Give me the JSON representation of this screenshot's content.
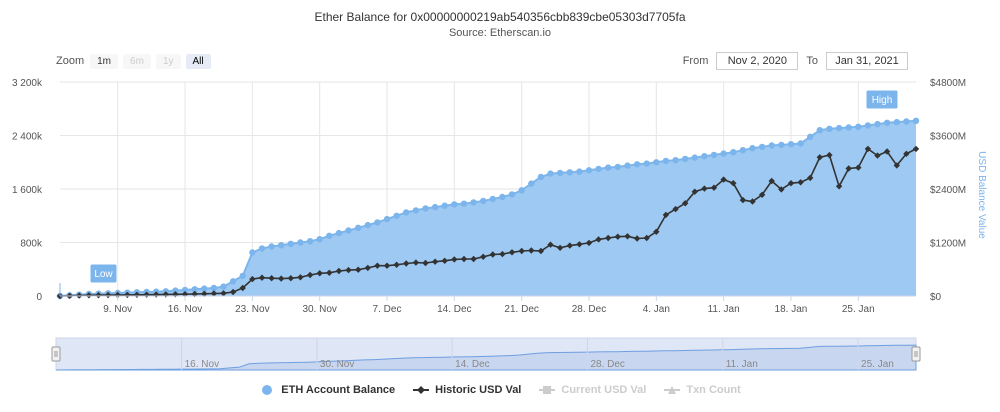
{
  "header": {
    "title": "Ether Balance for 0x00000000219ab540356cbb839cbe05303d7705fa",
    "subtitle": "Source: Etherscan.io"
  },
  "zoom": {
    "label": "Zoom",
    "buttons": [
      {
        "label": "1m",
        "state": "normal"
      },
      {
        "label": "6m",
        "state": "disabled"
      },
      {
        "label": "1y",
        "state": "disabled"
      },
      {
        "label": "All",
        "state": "active"
      }
    ]
  },
  "range": {
    "from_label": "From",
    "from_value": "Nov 2, 2020",
    "to_label": "To",
    "to_value": "Jan 31, 2021"
  },
  "chart_data": {
    "type": "area",
    "x_start": "2020-11-03",
    "x_end": "2021-01-31",
    "x_ticks": [
      "9. Nov",
      "16. Nov",
      "23. Nov",
      "30. Nov",
      "7. Dec",
      "14. Dec",
      "21. Dec",
      "28. Dec",
      "4. Jan",
      "11. Jan",
      "18. Jan",
      "25. Jan"
    ],
    "left_axis": {
      "ticks": [
        "0",
        "800k",
        "1 600k",
        "2 400k",
        "3 200k"
      ],
      "max": 3200
    },
    "right_axis": {
      "ticks": [
        "$0",
        "$1200M",
        "$2400M",
        "$3600M",
        "$4800M"
      ],
      "max": 4800,
      "label": "USD Balance Value"
    },
    "series": [
      {
        "name": "ETH Account Balance",
        "color": "#7cb5ec",
        "fill": "#9ec9f2",
        "unit": "k ETH",
        "x": [
          "2020-11-03",
          "2020-11-04",
          "2020-11-05",
          "2020-11-06",
          "2020-11-07",
          "2020-11-08",
          "2020-11-09",
          "2020-11-10",
          "2020-11-11",
          "2020-11-12",
          "2020-11-13",
          "2020-11-14",
          "2020-11-15",
          "2020-11-16",
          "2020-11-17",
          "2020-11-18",
          "2020-11-19",
          "2020-11-20",
          "2020-11-21",
          "2020-11-22",
          "2020-11-23",
          "2020-11-24",
          "2020-11-25",
          "2020-11-26",
          "2020-11-27",
          "2020-11-28",
          "2020-11-29",
          "2020-11-30",
          "2020-12-01",
          "2020-12-02",
          "2020-12-03",
          "2020-12-04",
          "2020-12-05",
          "2020-12-06",
          "2020-12-07",
          "2020-12-08",
          "2020-12-09",
          "2020-12-10",
          "2020-12-11",
          "2020-12-12",
          "2020-12-13",
          "2020-12-14",
          "2020-12-15",
          "2020-12-16",
          "2020-12-17",
          "2020-12-18",
          "2020-12-19",
          "2020-12-20",
          "2020-12-21",
          "2020-12-22",
          "2020-12-23",
          "2020-12-24",
          "2020-12-25",
          "2020-12-26",
          "2020-12-27",
          "2020-12-28",
          "2020-12-29",
          "2020-12-30",
          "2020-12-31",
          "2021-01-01",
          "2021-01-02",
          "2021-01-03",
          "2021-01-04",
          "2021-01-05",
          "2021-01-06",
          "2021-01-07",
          "2021-01-08",
          "2021-01-09",
          "2021-01-10",
          "2021-01-11",
          "2021-01-12",
          "2021-01-13",
          "2021-01-14",
          "2021-01-15",
          "2021-01-16",
          "2021-01-17",
          "2021-01-18",
          "2021-01-19",
          "2021-01-20",
          "2021-01-21",
          "2021-01-22",
          "2021-01-23",
          "2021-01-24",
          "2021-01-25",
          "2021-01-26",
          "2021-01-27",
          "2021-01-28",
          "2021-01-29",
          "2021-01-30",
          "2021-01-31"
        ],
        "values": [
          0,
          10,
          20,
          30,
          35,
          40,
          45,
          50,
          55,
          60,
          65,
          70,
          80,
          90,
          100,
          110,
          120,
          140,
          220,
          300,
          650,
          710,
          740,
          760,
          780,
          800,
          820,
          850,
          900,
          940,
          980,
          1020,
          1060,
          1100,
          1150,
          1200,
          1250,
          1280,
          1310,
          1330,
          1350,
          1370,
          1380,
          1400,
          1420,
          1450,
          1480,
          1520,
          1580,
          1680,
          1780,
          1830,
          1840,
          1850,
          1860,
          1880,
          1900,
          1920,
          1930,
          1950,
          1970,
          1980,
          2000,
          2020,
          2030,
          2050,
          2070,
          2090,
          2110,
          2130,
          2150,
          2180,
          2210,
          2230,
          2250,
          2260,
          2270,
          2280,
          2380,
          2480,
          2500,
          2510,
          2520,
          2530,
          2550,
          2570,
          2590,
          2600,
          2610,
          2620
        ]
      },
      {
        "name": "Historic USD Val",
        "color": "#333333",
        "unit": "$M",
        "x": [
          "2020-11-03",
          "2020-11-04",
          "2020-11-05",
          "2020-11-06",
          "2020-11-07",
          "2020-11-08",
          "2020-11-09",
          "2020-11-10",
          "2020-11-11",
          "2020-11-12",
          "2020-11-13",
          "2020-11-14",
          "2020-11-15",
          "2020-11-16",
          "2020-11-17",
          "2020-11-18",
          "2020-11-19",
          "2020-11-20",
          "2020-11-21",
          "2020-11-22",
          "2020-11-23",
          "2020-11-24",
          "2020-11-25",
          "2020-11-26",
          "2020-11-27",
          "2020-11-28",
          "2020-11-29",
          "2020-11-30",
          "2020-12-01",
          "2020-12-02",
          "2020-12-03",
          "2020-12-04",
          "2020-12-05",
          "2020-12-06",
          "2020-12-07",
          "2020-12-08",
          "2020-12-09",
          "2020-12-10",
          "2020-12-11",
          "2020-12-12",
          "2020-12-13",
          "2020-12-14",
          "2020-12-15",
          "2020-12-16",
          "2020-12-17",
          "2020-12-18",
          "2020-12-19",
          "2020-12-20",
          "2020-12-21",
          "2020-12-22",
          "2020-12-23",
          "2020-12-24",
          "2020-12-25",
          "2020-12-26",
          "2020-12-27",
          "2020-12-28",
          "2020-12-29",
          "2020-12-30",
          "2020-12-31",
          "2021-01-01",
          "2021-01-02",
          "2021-01-03",
          "2021-01-04",
          "2021-01-05",
          "2021-01-06",
          "2021-01-07",
          "2021-01-08",
          "2021-01-09",
          "2021-01-10",
          "2021-01-11",
          "2021-01-12",
          "2021-01-13",
          "2021-01-14",
          "2021-01-15",
          "2021-01-16",
          "2021-01-17",
          "2021-01-18",
          "2021-01-19",
          "2021-01-20",
          "2021-01-21",
          "2021-01-22",
          "2021-01-23",
          "2021-01-24",
          "2021-01-25",
          "2021-01-26",
          "2021-01-27",
          "2021-01-28",
          "2021-01-29",
          "2021-01-30",
          "2021-01-31"
        ],
        "values": [
          0,
          5,
          10,
          15,
          17,
          20,
          22,
          25,
          27,
          30,
          32,
          35,
          38,
          40,
          45,
          50,
          55,
          60,
          90,
          180,
          380,
          410,
          400,
          390,
          400,
          420,
          470,
          510,
          520,
          560,
          580,
          590,
          630,
          680,
          680,
          700,
          730,
          750,
          740,
          770,
          790,
          820,
          830,
          830,
          880,
          930,
          940,
          980,
          1010,
          1020,
          1010,
          1150,
          1080,
          1130,
          1160,
          1190,
          1270,
          1300,
          1330,
          1340,
          1290,
          1300,
          1440,
          1820,
          1950,
          2080,
          2340,
          2410,
          2430,
          2610,
          2530,
          2150,
          2120,
          2270,
          2580,
          2390,
          2530,
          2550,
          2650,
          3110,
          3160,
          2460,
          2860,
          2880,
          3300,
          3150,
          3240,
          2930,
          3190,
          3300
        ]
      },
      {
        "name": "Current USD Val",
        "hidden": true
      },
      {
        "name": "Txn Count",
        "hidden": true
      }
    ],
    "flags": [
      {
        "label": "Low",
        "x": "2020-11-03",
        "series": "ETH Account Balance"
      },
      {
        "label": "High",
        "x": "2021-01-31",
        "series": "ETH Account Balance"
      }
    ],
    "navigator": {
      "ticks": [
        "16. Nov",
        "30. Nov",
        "14. Dec",
        "28. Dec",
        "11. Jan",
        "25. Jan"
      ]
    }
  },
  "legend": [
    {
      "label": "ETH Account Balance",
      "icon": "circle",
      "color": "#7cb5ec",
      "hidden": false
    },
    {
      "label": "Historic USD Val",
      "icon": "diamond-line",
      "color": "#333333",
      "hidden": false
    },
    {
      "label": "Current USD Val",
      "icon": "square-line",
      "color": "#cccccc",
      "hidden": true
    },
    {
      "label": "Txn Count",
      "icon": "triangle-line",
      "color": "#cccccc",
      "hidden": true
    }
  ]
}
